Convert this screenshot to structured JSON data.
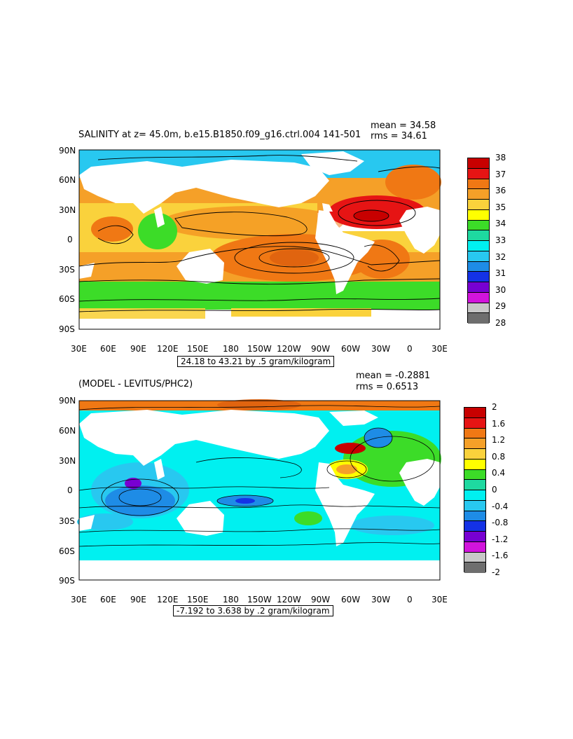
{
  "panel1": {
    "title": "SALINITY at z=  45.0m, b.e15.B1850.f09_g16.ctrl.004 141-501",
    "mean_label": "mean = 34.58",
    "rms_label": "rms = 34.61",
    "range_label": "24.18 to 43.21 by .5 gram/kilogram",
    "colorbar": {
      "labels": [
        "38",
        "37",
        "36",
        "35",
        "34",
        "33",
        "32",
        "31",
        "30",
        "29",
        "28"
      ],
      "colors": [
        "#c80000",
        "#e61414",
        "#f07814",
        "#f5a028",
        "#fad23c",
        "#ffff00",
        "#3cdc28",
        "#1ed9a0",
        "#00f0f0",
        "#28c8f0",
        "#1e8ce6",
        "#1432e6",
        "#7800d2",
        "#d214dc",
        "#c8c8c8",
        "#6e6e6e"
      ]
    }
  },
  "panel2": {
    "title": "(MODEL - LEVITUS/PHC2)",
    "mean_label": "mean = -0.2881",
    "rms_label": "rms = 0.6513",
    "range_label": "-7.192 to 3.638 by .2 gram/kilogram",
    "colorbar": {
      "labels": [
        "2",
        "1.6",
        "1.2",
        "0.8",
        "0.4",
        "0",
        "-0.4",
        "-0.8",
        "-1.2",
        "-1.6",
        "-2"
      ],
      "colors": [
        "#c80000",
        "#e61414",
        "#f07814",
        "#f5a028",
        "#fad23c",
        "#ffff00",
        "#3cdc28",
        "#1ed9a0",
        "#00f0f0",
        "#28c8f0",
        "#1e8ce6",
        "#1432e6",
        "#7800d2",
        "#d214dc",
        "#c8c8c8",
        "#6e6e6e"
      ]
    }
  },
  "axes": {
    "lat_labels": [
      "90N",
      "60N",
      "30N",
      "0",
      "30S",
      "60S",
      "90S"
    ],
    "lon_labels": [
      "30E",
      "60E",
      "90E",
      "120E",
      "150E",
      "180",
      "150W",
      "120W",
      "90W",
      "60W",
      "30W",
      "0",
      "30E"
    ]
  },
  "colors": {
    "land": "#ffffff",
    "contour": "#000000"
  }
}
